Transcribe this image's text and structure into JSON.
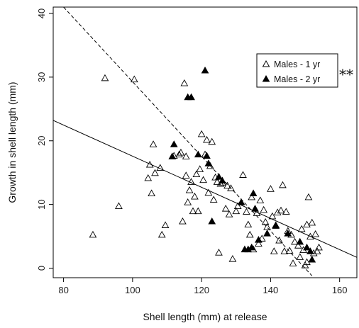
{
  "chart_data": {
    "type": "scatter",
    "xlabel": "Shell length (mm) at release",
    "ylabel": "Growth in shell length (mm)",
    "xlim": [
      77,
      165
    ],
    "ylim": [
      -1.5,
      41
    ],
    "xticks": [
      80,
      100,
      120,
      140,
      160
    ],
    "yticks": [
      0,
      10,
      20,
      30,
      40
    ],
    "grid": false,
    "legend_position": "top-right",
    "annotation": "**",
    "series": [
      {
        "name": "Males - 1 yr",
        "marker": "open-triangle",
        "color": "#000000",
        "points": [
          [
            88.5,
            5.2
          ],
          [
            92,
            29.8
          ],
          [
            96,
            9.7
          ],
          [
            100.5,
            29.6
          ],
          [
            104.5,
            14.1
          ],
          [
            105,
            16.2
          ],
          [
            105.5,
            11.7
          ],
          [
            106,
            19.4
          ],
          [
            106.5,
            14.9
          ],
          [
            108,
            15.7
          ],
          [
            108.5,
            5.2
          ],
          [
            109.5,
            6.7
          ],
          [
            112,
            17.6
          ],
          [
            113.5,
            17.8
          ],
          [
            114,
            18.1
          ],
          [
            114.5,
            7.3
          ],
          [
            115,
            29
          ],
          [
            115.5,
            17.5
          ],
          [
            115.5,
            14.5
          ],
          [
            116,
            10.3
          ],
          [
            116.5,
            12.2
          ],
          [
            117,
            13.5
          ],
          [
            117.5,
            8.9
          ],
          [
            118,
            11.2
          ],
          [
            118.5,
            14.7
          ],
          [
            119,
            8.9
          ],
          [
            119.5,
            15.5
          ],
          [
            120,
            21
          ],
          [
            120.5,
            13.8
          ],
          [
            121,
            17.8
          ],
          [
            121.5,
            20.1
          ],
          [
            122,
            11.8
          ],
          [
            122.5,
            16
          ],
          [
            123,
            19.8
          ],
          [
            123.5,
            10.7
          ],
          [
            124,
            14.2
          ],
          [
            124.5,
            13.5
          ],
          [
            125,
            2.4
          ],
          [
            125.5,
            13.2
          ],
          [
            126,
            13.4
          ],
          [
            127,
            9.3
          ],
          [
            127.5,
            12.9
          ],
          [
            128,
            8.4
          ],
          [
            128.5,
            12.5
          ],
          [
            129,
            1.4
          ],
          [
            130,
            8.9
          ],
          [
            130.5,
            9.7
          ],
          [
            132,
            14.6
          ],
          [
            133,
            8.8
          ],
          [
            133.5,
            6.8
          ],
          [
            134,
            5.2
          ],
          [
            134.5,
            11.1
          ],
          [
            135,
            2.9
          ],
          [
            136,
            8.6
          ],
          [
            136.5,
            3.8
          ],
          [
            137,
            10.6
          ],
          [
            137.5,
            4.6
          ],
          [
            138,
            9.1
          ],
          [
            138.5,
            7.2
          ],
          [
            139,
            6.4
          ],
          [
            140,
            12.4
          ],
          [
            140.5,
            8.1
          ],
          [
            141,
            2.6
          ],
          [
            141.5,
            6.6
          ],
          [
            142,
            8.7
          ],
          [
            142.5,
            4.3
          ],
          [
            143,
            9
          ],
          [
            143.5,
            13
          ],
          [
            144,
            2.6
          ],
          [
            144.5,
            8.8
          ],
          [
            145,
            5.8
          ],
          [
            145.5,
            2.7
          ],
          [
            146,
            5.2
          ],
          [
            147,
            4.1
          ],
          [
            148,
            3.5
          ],
          [
            148.5,
            1.7
          ],
          [
            149,
            6.1
          ],
          [
            149.5,
            2.8
          ],
          [
            150,
            0.4
          ],
          [
            150.5,
            6.8
          ],
          [
            151,
            11.1
          ],
          [
            151.5,
            4.9
          ],
          [
            152,
            7.1
          ],
          [
            152.5,
            2.3
          ],
          [
            153,
            5.3
          ],
          [
            153.5,
            2.6
          ],
          [
            154,
            3.2
          ],
          [
            150.5,
            0.9
          ],
          [
            146.5,
            0.7
          ]
        ]
      },
      {
        "name": "Males - 2 yr",
        "marker": "filled-triangle",
        "color": "#000000",
        "points": [
          [
            111.5,
            17.5
          ],
          [
            112,
            19.4
          ],
          [
            116,
            26.8
          ],
          [
            117,
            26.8
          ],
          [
            119,
            17.8
          ],
          [
            121,
            31
          ],
          [
            121.5,
            17.6
          ],
          [
            122,
            16.4
          ],
          [
            123,
            7.3
          ],
          [
            125,
            14.3
          ],
          [
            126,
            13.7
          ],
          [
            131.5,
            10.3
          ],
          [
            132.5,
            2.9
          ],
          [
            133.5,
            2.9
          ],
          [
            134.5,
            3.2
          ],
          [
            135,
            11.7
          ],
          [
            135.5,
            9.3
          ],
          [
            136.5,
            4.4
          ],
          [
            139,
            5.4
          ],
          [
            141.5,
            6.7
          ],
          [
            145,
            5.4
          ],
          [
            148.5,
            4.1
          ],
          [
            150.5,
            3.2
          ],
          [
            151.5,
            2.6
          ],
          [
            152,
            1.3
          ]
        ]
      }
    ],
    "fit_lines": [
      {
        "style": "solid",
        "from": [
          77,
          23.2
        ],
        "to": [
          165,
          1.7
        ]
      },
      {
        "style": "dashed",
        "from": [
          80,
          41
        ],
        "to": [
          152,
          -1.2
        ]
      }
    ]
  }
}
